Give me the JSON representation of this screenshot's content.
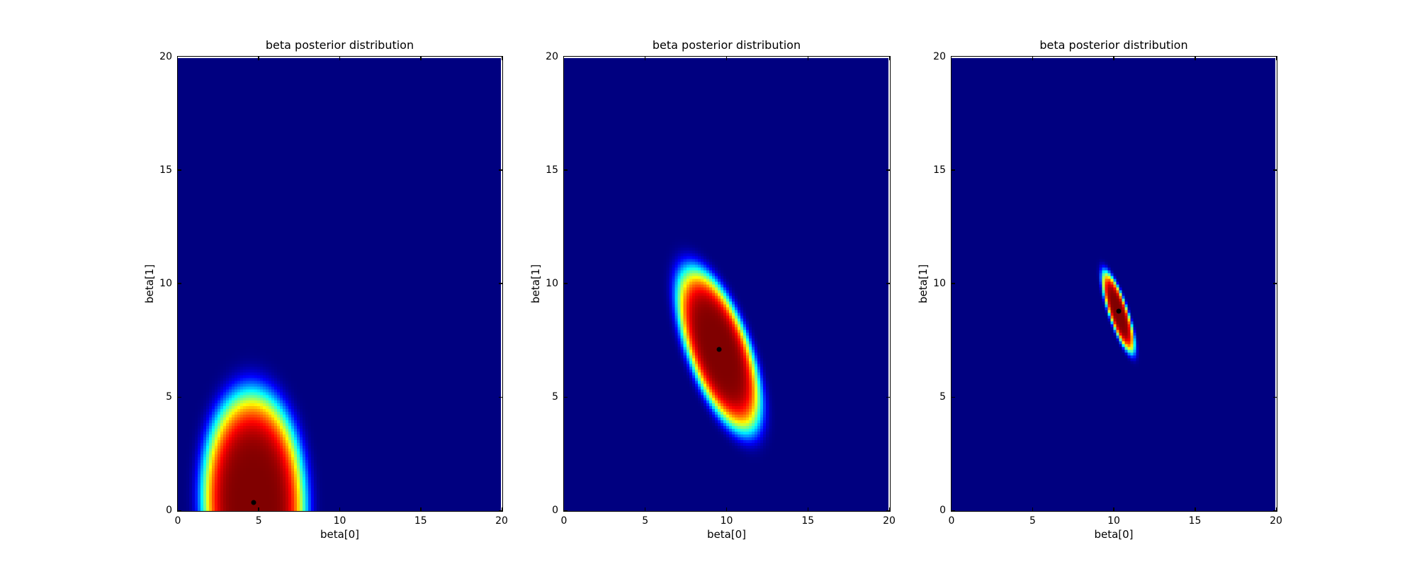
{
  "page": {
    "background_color": "#ffffff"
  },
  "chart_data": {
    "type": "heatmap",
    "colormap": "jet",
    "colormap_min_color": "#000080",
    "colormap_max_color": "#800000",
    "marker_color": "#000000",
    "plots": [
      {
        "title": "beta posterior distribution",
        "xlabel": "beta[0]",
        "ylabel": "beta[1]",
        "xlim": [
          0,
          20
        ],
        "ylim": [
          0,
          20
        ],
        "xticks": [
          0,
          5,
          10,
          15,
          20
        ],
        "yticks": [
          0,
          5,
          10,
          15,
          20
        ],
        "xtick_labels": [
          "0",
          "5",
          "10",
          "15",
          "20"
        ],
        "ytick_labels": [
          "0",
          "5",
          "10",
          "15",
          "20"
        ],
        "distribution": {
          "type": "gaussian2d",
          "mean": [
            4.7,
            0.35
          ],
          "sigma": [
            1.55,
            2.4
          ],
          "rho": -0.05,
          "falloff_scale": 4.28,
          "falloff_power": 3
        },
        "marker": [
          4.7,
          0.35
        ]
      },
      {
        "title": "beta posterior distribution",
        "xlabel": "beta[0]",
        "ylabel": "beta[1]",
        "xlim": [
          0,
          20
        ],
        "ylim": [
          0,
          20
        ],
        "xticks": [
          0,
          5,
          10,
          15,
          20
        ],
        "yticks": [
          0,
          5,
          10,
          15,
          20
        ],
        "xtick_labels": [
          "0",
          "5",
          "10",
          "15",
          "20"
        ],
        "ytick_labels": [
          "0",
          "5",
          "10",
          "15",
          "20"
        ],
        "distribution": {
          "type": "gaussian2d",
          "mean": [
            9.55,
            7.1
          ],
          "sigma": [
            1.25,
            1.76
          ],
          "rho": -0.63,
          "falloff_scale": 4.28,
          "falloff_power": 3
        },
        "marker": [
          9.55,
          7.1
        ]
      },
      {
        "title": "beta posterior distribution",
        "xlabel": "beta[0]",
        "ylabel": "beta[1]",
        "xlim": [
          0,
          20
        ],
        "ylim": [
          0,
          20
        ],
        "xticks": [
          0,
          5,
          10,
          15,
          20
        ],
        "yticks": [
          0,
          5,
          10,
          15,
          20
        ],
        "xtick_labels": [
          "0",
          "5",
          "10",
          "15",
          "20"
        ],
        "ytick_labels": [
          "0",
          "5",
          "10",
          "15",
          "20"
        ],
        "distribution": {
          "type": "gaussian2d",
          "mean": [
            10.3,
            8.78
          ],
          "sigma": [
            0.49,
            0.87
          ],
          "rho": -0.8,
          "falloff_scale": 4.28,
          "falloff_power": 3
        },
        "marker": [
          10.3,
          8.78
        ]
      }
    ]
  }
}
